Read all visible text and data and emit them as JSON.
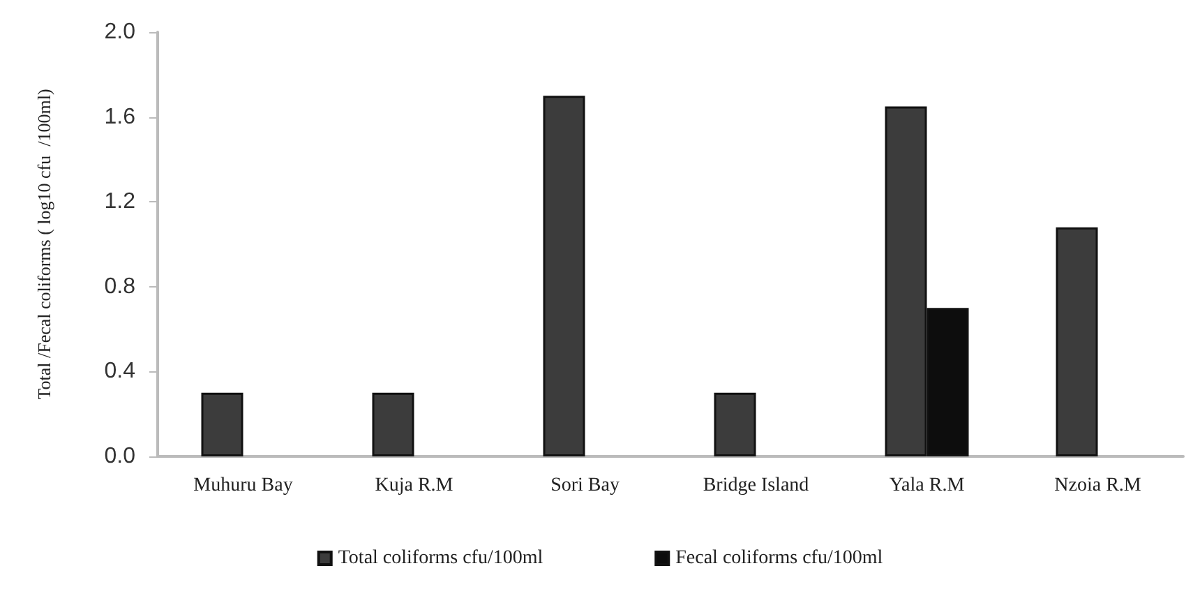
{
  "chart_data": {
    "type": "bar",
    "ylabel": "Total /Fecal coliforms ( log10 cfu  /100ml)",
    "categories": [
      "Muhuru Bay",
      "Kuja R.M",
      "Sori Bay",
      "Bridge Island",
      "Yala R.M",
      "Nzoia R.M"
    ],
    "series": [
      {
        "name": "Total coliforms cfu/100ml",
        "color": "#3c3c3c",
        "values": [
          0.3,
          0.3,
          1.7,
          0.3,
          1.65,
          1.08
        ]
      },
      {
        "name": "Fecal coliforms cfu/100ml",
        "color": "#0d0d0d",
        "values": [
          null,
          null,
          null,
          null,
          0.7,
          null
        ]
      }
    ],
    "ylim": [
      0,
      2.0
    ],
    "yticks": [
      {
        "value": 0,
        "label": "0.0"
      },
      {
        "value": 0.4,
        "label": "0.4"
      },
      {
        "value": 0.8,
        "label": "0.8"
      },
      {
        "value": 1.2,
        "label": "1.2"
      },
      {
        "value": 1.6,
        "label": "1.6"
      },
      {
        "value": 2.0,
        "label": "2.0"
      }
    ],
    "grid": false,
    "legend": "bottom"
  }
}
